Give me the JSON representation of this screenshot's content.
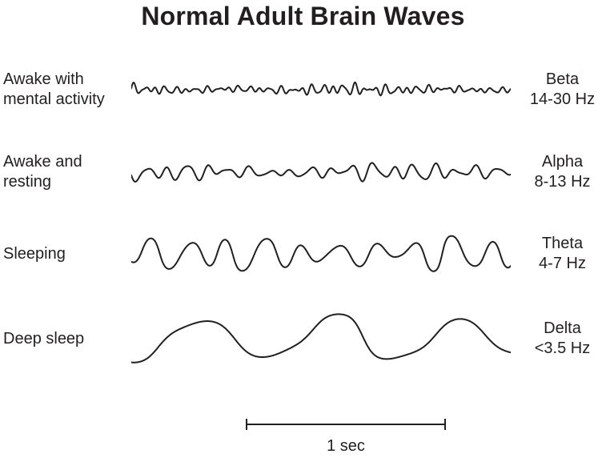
{
  "title": "Normal Adult Brain Waves",
  "colors": {
    "ink": "#231f20",
    "background": "#ffffff"
  },
  "scale_bar": {
    "label": "1 sec",
    "seconds": 1
  },
  "chart_data": {
    "type": "line",
    "title": "Normal Adult Brain Waves",
    "duration_sec": 1.9,
    "series": [
      {
        "name": "Beta",
        "state": "Awake with mental activity",
        "frequency_range_hz": "14-30",
        "relative_amplitude": "low"
      },
      {
        "name": "Alpha",
        "state": "Awake and resting",
        "frequency_range_hz": "8-13",
        "relative_amplitude": "medium"
      },
      {
        "name": "Theta",
        "state": "Sleeping",
        "frequency_range_hz": "4-7",
        "relative_amplitude": "high"
      },
      {
        "name": "Delta",
        "state": "Deep sleep",
        "frequency_range_hz": "<3.5",
        "relative_amplitude": "highest"
      }
    ]
  },
  "waves": [
    {
      "state": "Awake with\nmental activity",
      "band": "Beta",
      "range": "14-30 Hz",
      "synth": {
        "duration": 1.9,
        "amp": 9,
        "seed": 7,
        "noise": 0.3,
        "clip": 0,
        "height": 50,
        "components": [
          {
            "f": 19,
            "a": 0.45
          },
          {
            "f": 13.5,
            "a": 0.3
          },
          {
            "f": 27,
            "a": 0.25
          }
        ]
      }
    },
    {
      "state": "Awake and\nresting",
      "band": "Alpha",
      "range": "8-13 Hz",
      "synth": {
        "duration": 1.9,
        "amp": 14,
        "seed": 11,
        "noise": 0.2,
        "clip": 0,
        "height": 60,
        "components": [
          {
            "f": 9.7,
            "a": 0.55
          },
          {
            "f": 6.3,
            "a": 0.25
          },
          {
            "f": 14.8,
            "a": 0.2
          }
        ]
      }
    },
    {
      "state": "Sleeping",
      "band": "Theta",
      "range": "4-7 Hz",
      "synth": {
        "duration": 1.9,
        "amp": 24,
        "seed": 3,
        "noise": 0.15,
        "clip": 1.3,
        "height": 80,
        "components": [
          {
            "f": 5.3,
            "a": 0.6
          },
          {
            "f": 3.2,
            "a": 0.25
          },
          {
            "f": 8.1,
            "a": 0.15
          }
        ]
      }
    },
    {
      "state": "Deep sleep",
      "band": "Delta",
      "range": "<3.5 Hz",
      "synth": {
        "duration": 1.9,
        "amp": 33,
        "seed": 5,
        "noise": 0.08,
        "clip": 1.6,
        "height": 92,
        "components": [
          {
            "f": 1.55,
            "a": 0.75
          },
          {
            "f": 3.3,
            "a": 0.15
          },
          {
            "f": 0.8,
            "a": 0.1
          }
        ]
      }
    }
  ]
}
